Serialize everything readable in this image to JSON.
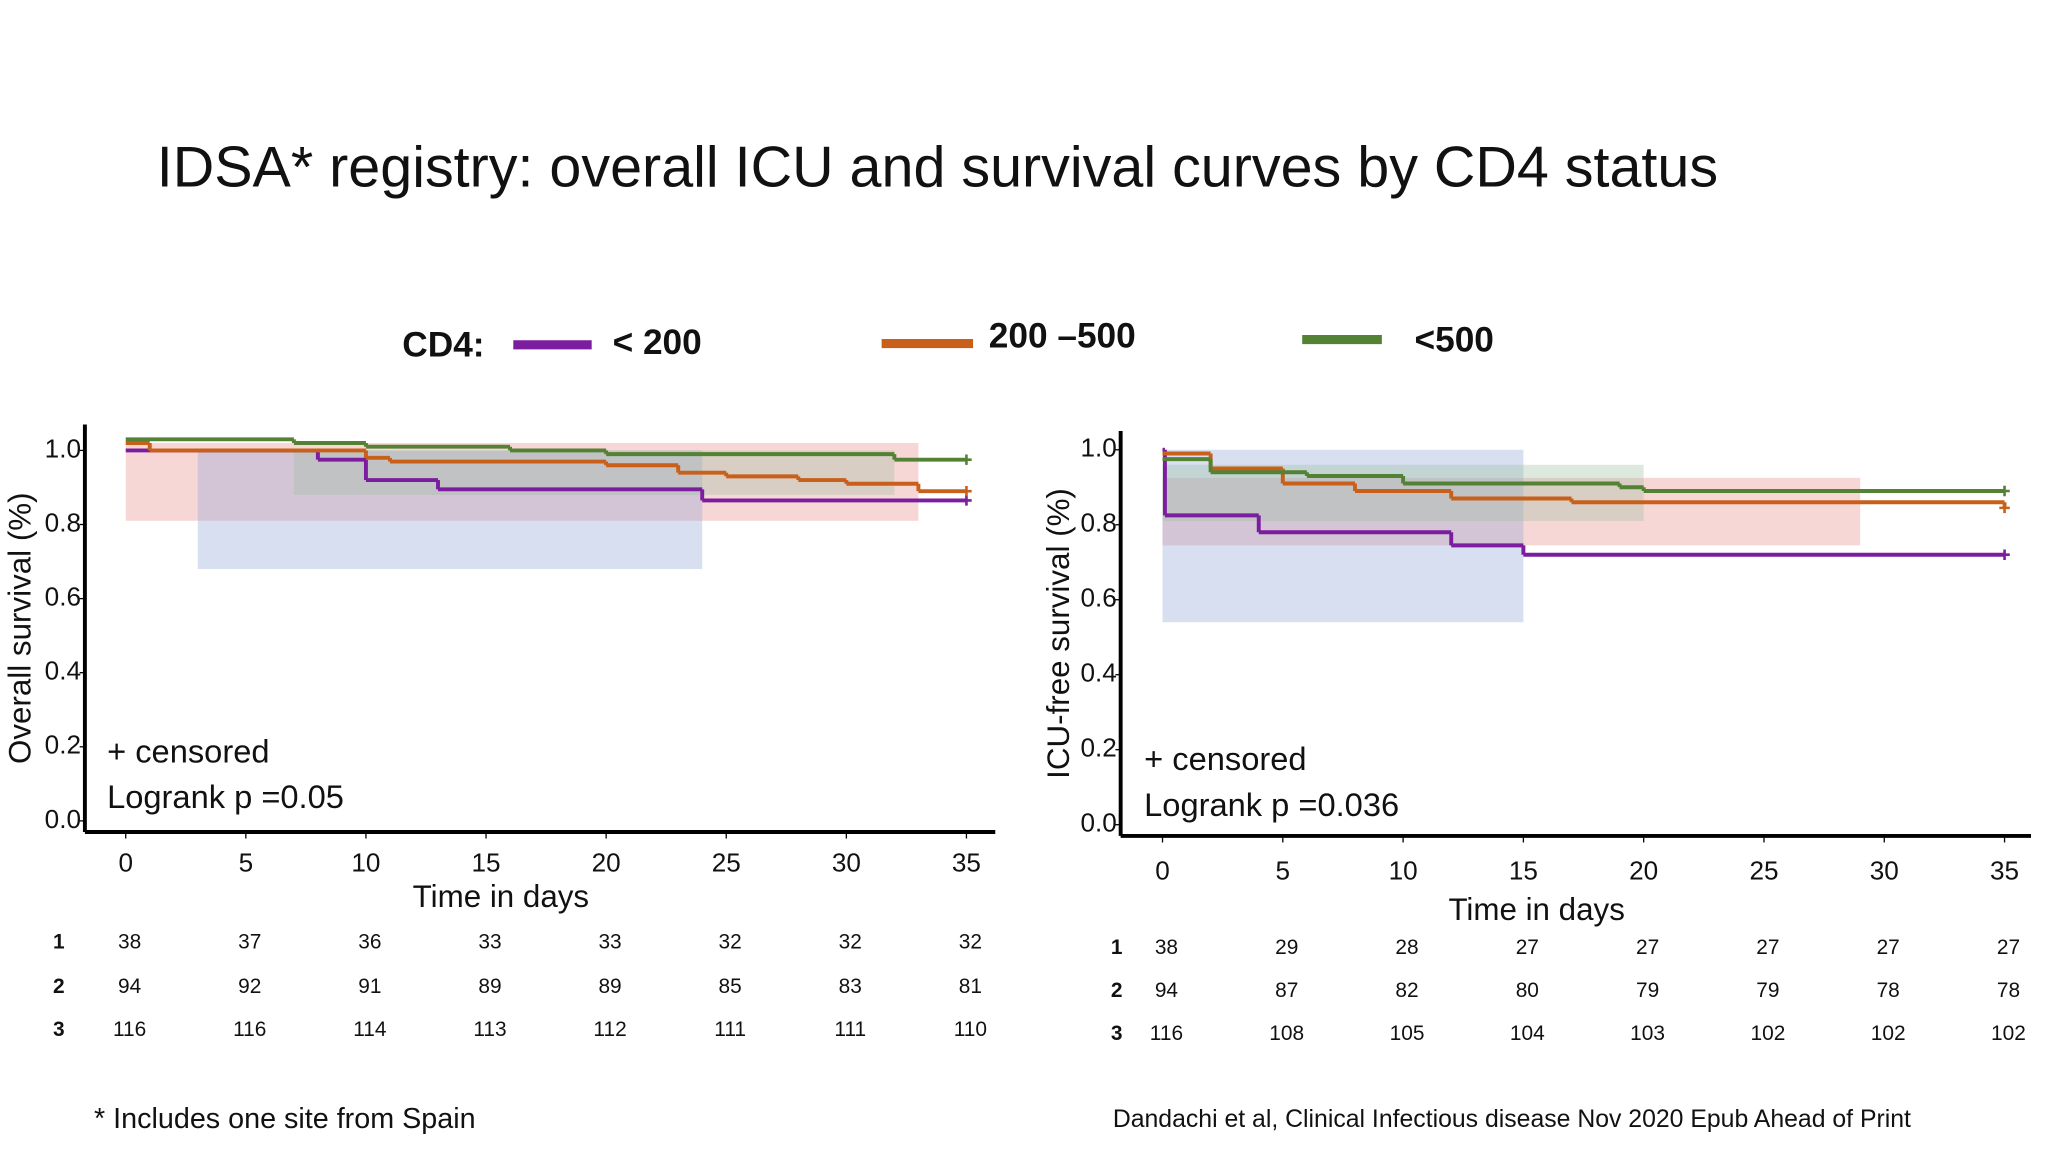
{
  "slide": {
    "title": "IDSA* registry: overall ICU and survival curves by CD4 status",
    "footnote": "* Includes one site from Spain",
    "citation": "Dandachi et al, Clinical Infectious disease Nov 2020 Epub Ahead of Print"
  },
  "chart_data": [
    {
      "type": "step",
      "legend_title": "CD4:",
      "x_label": "Time in days",
      "y_label": "Overall survival (%)",
      "annotations": [
        "+ censored",
        "Logrank p =0.05"
      ],
      "xlim": [
        -1.7,
        36.2
      ],
      "ylim": [
        -0.03,
        1.07
      ],
      "xticks": [
        0,
        5,
        10,
        15,
        20,
        25,
        30,
        35
      ],
      "yticks": [
        {
          "value": 0,
          "label": "0.0"
        },
        0.2,
        0.4,
        0.6,
        0.8,
        {
          "value": 1,
          "label": "1.0"
        }
      ],
      "series": [
        {
          "name": "< 200",
          "color": "#7b1d9e",
          "x": [
            0,
            8,
            10,
            13,
            24,
            35
          ],
          "values": [
            1.0,
            0.975,
            0.92,
            0.895,
            0.865,
            0.865
          ]
        },
        {
          "name": "200 –500",
          "color": "#c8601a",
          "x": [
            0,
            1,
            10,
            11,
            20,
            23,
            25,
            28,
            30,
            33,
            35
          ],
          "values": [
            1.02,
            1.0,
            0.98,
            0.97,
            0.96,
            0.94,
            0.93,
            0.92,
            0.91,
            0.89,
            0.89
          ]
        },
        {
          "name": "<500",
          "color": "#548235",
          "x": [
            0,
            7,
            10,
            16,
            20,
            32,
            35
          ],
          "values": [
            1.03,
            1.02,
            1.01,
            1.0,
            0.99,
            0.975,
            0.975
          ]
        }
      ],
      "bands": [
        {
          "color": "#e88a8a",
          "x": [
            0,
            33
          ],
          "y": [
            0.81,
            1.02
          ]
        },
        {
          "color": "#8fa3d6",
          "x": [
            3,
            24
          ],
          "y": [
            0.68,
            1.0
          ]
        },
        {
          "color": "#9fbfa0",
          "x": [
            7,
            32
          ],
          "y": [
            0.88,
            1.0
          ]
        }
      ],
      "risk_table": {
        "labels": [
          "1",
          "2",
          "3"
        ],
        "rows": [
          [
            38,
            37,
            36,
            33,
            33,
            32,
            32,
            32
          ],
          [
            94,
            92,
            91,
            89,
            89,
            85,
            83,
            81
          ],
          [
            116,
            116,
            114,
            113,
            112,
            111,
            111,
            110
          ]
        ]
      }
    },
    {
      "type": "step",
      "x_label": "Time in days",
      "y_label": "ICU-free survival (%)",
      "annotations": [
        "+ censored",
        "Logrank p =0.036"
      ],
      "xlim": [
        -1.74,
        36.1
      ],
      "ylim": [
        -0.03,
        1.05
      ],
      "xticks": [
        0,
        5,
        10,
        15,
        20,
        25,
        30,
        35
      ],
      "yticks": [
        {
          "value": 0,
          "label": "0.0"
        },
        0.2,
        0.4,
        0.6,
        0.8,
        {
          "value": 1,
          "label": "1.0"
        }
      ],
      "series": [
        {
          "name": "< 200",
          "color": "#7b1d9e",
          "x": [
            0,
            0.1,
            4,
            12,
            15,
            35
          ],
          "values": [
            1.0,
            0.825,
            0.78,
            0.745,
            0.72,
            0.72
          ]
        },
        {
          "name": "200 –500",
          "color": "#c8601a",
          "x": [
            0,
            2,
            5,
            8,
            12,
            17,
            35
          ],
          "values": [
            0.99,
            0.95,
            0.91,
            0.89,
            0.87,
            0.86,
            0.845
          ]
        },
        {
          "name": "<500",
          "color": "#548235",
          "x": [
            0,
            2,
            6,
            10,
            19,
            20,
            35
          ],
          "values": [
            0.975,
            0.94,
            0.93,
            0.91,
            0.9,
            0.89,
            0.89
          ]
        }
      ],
      "bands": [
        {
          "color": "#e88a8a",
          "x": [
            0,
            29
          ],
          "y": [
            0.745,
            0.925
          ]
        },
        {
          "color": "#8fa3d6",
          "x": [
            0,
            15
          ],
          "y": [
            0.54,
            1.0
          ]
        },
        {
          "color": "#9fbfa0",
          "x": [
            0,
            20
          ],
          "y": [
            0.81,
            0.96
          ]
        }
      ],
      "risk_table": {
        "labels": [
          "1",
          "2",
          "3"
        ],
        "rows": [
          [
            38,
            29,
            28,
            27,
            27,
            27,
            27,
            27
          ],
          [
            94,
            87,
            82,
            80,
            79,
            79,
            78,
            78
          ],
          [
            116,
            108,
            105,
            104,
            103,
            102,
            102,
            102
          ]
        ]
      }
    }
  ]
}
